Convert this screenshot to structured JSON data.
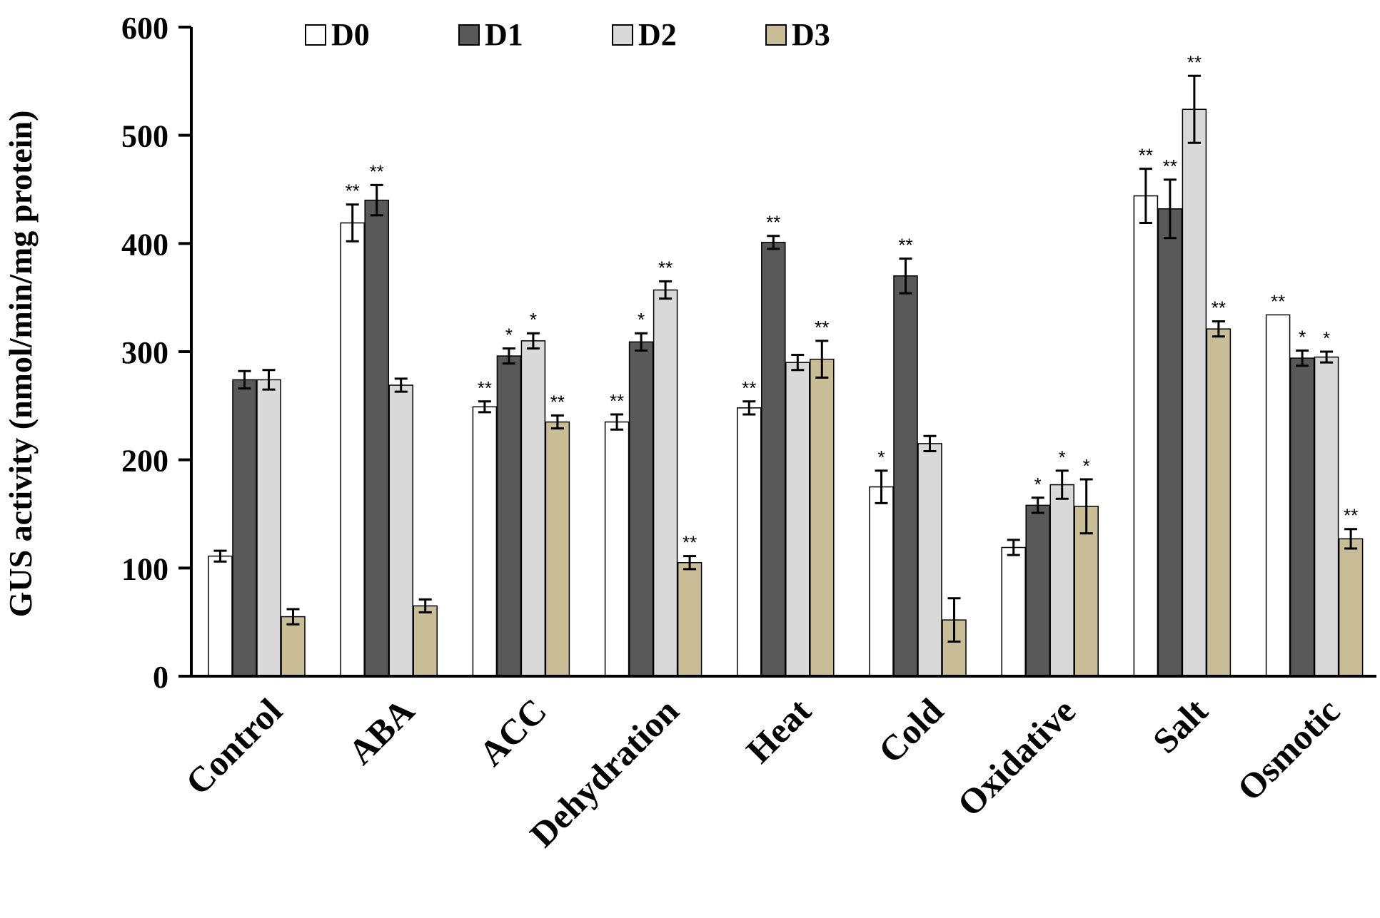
{
  "chart_data": {
    "type": "bar",
    "title": "",
    "xlabel": "",
    "ylabel": "GUS  activity (nmol/min/mg protein)",
    "ylim": [
      0,
      600
    ],
    "yticks": [
      0,
      100,
      200,
      300,
      400,
      500,
      600
    ],
    "grid": false,
    "legend_position": "top",
    "categories": [
      "Control",
      "ABA",
      "ACC",
      "Dehydration",
      "Heat",
      "Cold",
      "Oxidative",
      "Salt",
      "Osmotic"
    ],
    "series": [
      {
        "name": "D0",
        "color": "#ffffff",
        "values": [
          111,
          419,
          249,
          235,
          248,
          175,
          119,
          444,
          334
        ],
        "errors": [
          5,
          17,
          5,
          7,
          6,
          15,
          7,
          25,
          0
        ],
        "significance": [
          "",
          "**",
          "**",
          "**",
          "**",
          "*",
          "",
          "**",
          "**"
        ]
      },
      {
        "name": "D1",
        "color": "#595959",
        "values": [
          274,
          440,
          296,
          309,
          401,
          370,
          158,
          432,
          294
        ],
        "errors": [
          8,
          14,
          7,
          8,
          6,
          16,
          7,
          27,
          7
        ],
        "significance": [
          "",
          "**",
          "*",
          "*",
          "**",
          "**",
          "*",
          "**",
          "*"
        ]
      },
      {
        "name": "D2",
        "color": "#d9d9d9",
        "values": [
          274,
          269,
          310,
          357,
          290,
          215,
          177,
          524,
          295
        ],
        "errors": [
          9,
          6,
          7,
          8,
          7,
          7,
          13,
          31,
          5
        ],
        "significance": [
          "",
          "",
          "*",
          "**",
          "",
          "",
          "*",
          "**",
          "*"
        ]
      },
      {
        "name": "D3",
        "color": "#c9bd98",
        "values": [
          55,
          65,
          235,
          105,
          293,
          52,
          157,
          321,
          127
        ],
        "errors": [
          7,
          6,
          6,
          6,
          17,
          20,
          25,
          7,
          9
        ],
        "significance": [
          "",
          "",
          "**",
          "**",
          "**",
          "",
          "*",
          "**",
          "**"
        ]
      }
    ]
  }
}
